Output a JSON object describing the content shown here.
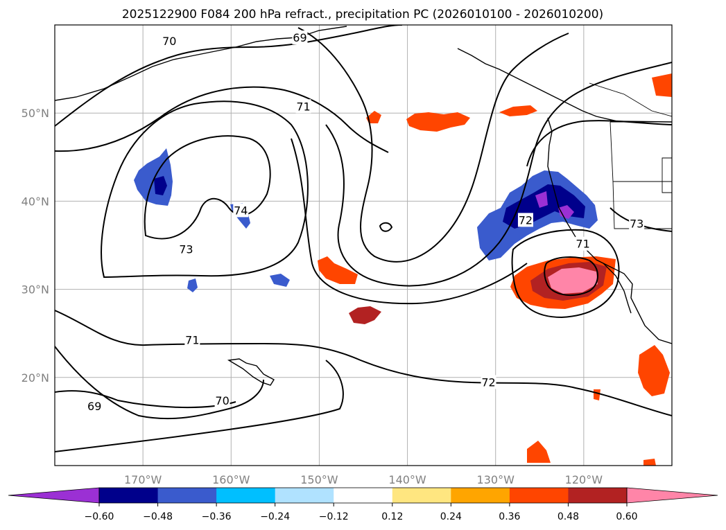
{
  "title": "2025122900 F084 200 hPa refract., precipitation PC (2026010100 - 2026010200)",
  "map": {
    "lat_ticks": [
      {
        "value": 50,
        "label": "50°N"
      },
      {
        "value": 40,
        "label": "40°N"
      },
      {
        "value": 30,
        "label": "30°N"
      },
      {
        "value": 20,
        "label": "20°N"
      }
    ],
    "lon_ticks": [
      {
        "value": -170,
        "label": "170°W"
      },
      {
        "value": -160,
        "label": "160°W"
      },
      {
        "value": -150,
        "label": "150°W"
      },
      {
        "value": -140,
        "label": "140°W"
      },
      {
        "value": -130,
        "label": "130°W"
      },
      {
        "value": -120,
        "label": "120°W"
      }
    ],
    "lon_range": [
      -180,
      -110
    ],
    "lat_range": [
      10,
      60
    ],
    "grid": true,
    "contour_labels": [
      {
        "text": "70",
        "lon": -167,
        "lat": 58.1
      },
      {
        "text": "69",
        "lon": -152.2,
        "lat": 58.5
      },
      {
        "text": "71",
        "lon": -151.8,
        "lat": 50.7
      },
      {
        "text": "74",
        "lon": -158.9,
        "lat": 38.9
      },
      {
        "text": "73",
        "lon": -165.1,
        "lat": 34.5
      },
      {
        "text": "71",
        "lon": -164.4,
        "lat": 24.2
      },
      {
        "text": "69",
        "lon": -175.5,
        "lat": 16.7
      },
      {
        "text": "70",
        "lon": -161,
        "lat": 17.3
      },
      {
        "text": "72",
        "lon": -130.8,
        "lat": 19.4
      },
      {
        "text": "72",
        "lon": -126.6,
        "lat": 37.8
      },
      {
        "text": "73",
        "lon": -114,
        "lat": 37.4
      },
      {
        "text": "71",
        "lon": -120.1,
        "lat": 35.1
      }
    ]
  },
  "colorbar": {
    "levels": [
      -0.6,
      -0.48,
      -0.36,
      -0.24,
      -0.12,
      0.12,
      0.24,
      0.36,
      0.48,
      0.6
    ],
    "tick_labels": [
      "−0.60",
      "−0.48",
      "−0.36",
      "−0.24",
      "−0.12",
      "0.12",
      "0.24",
      "0.36",
      "0.48",
      "0.60"
    ],
    "colors": [
      "#9b30d4",
      "#00008b",
      "#3a5bcd",
      "#00bfff",
      "#b0e2ff",
      "#ffffff",
      "#ffe680",
      "#ffa500",
      "#ff4500",
      "#b22222",
      "#ff85a8"
    ],
    "extend": "both"
  }
}
